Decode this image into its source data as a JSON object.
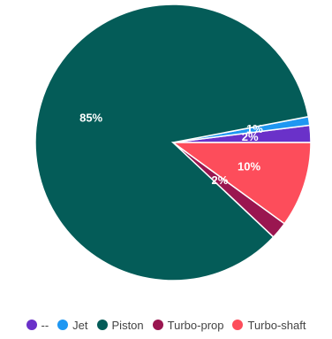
{
  "chart_data": {
    "type": "pie",
    "series": [
      {
        "name": "--",
        "value": 2,
        "label": "2%",
        "color": "#6a31c9"
      },
      {
        "name": "Jet",
        "value": 1,
        "label": "1%",
        "color": "#1f97f2"
      },
      {
        "name": "Piston",
        "value": 85,
        "label": "85%",
        "color": "#045c58"
      },
      {
        "name": "Turbo-prop",
        "value": 2,
        "label": "2%",
        "color": "#9a1650"
      },
      {
        "name": "Turbo-shaft",
        "value": 10,
        "label": "10%",
        "color": "#fd4d5b"
      }
    ],
    "legend_position": "bottom",
    "slice_border_color": "#ffffff",
    "label_color": "#ffffff"
  }
}
